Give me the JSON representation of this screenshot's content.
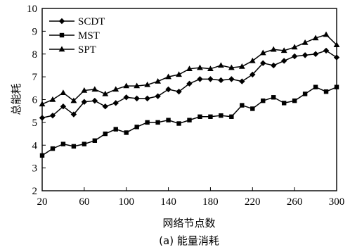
{
  "chart_data": {
    "type": "line",
    "title": "(a) 能量消耗",
    "xlabel": "网络节点数",
    "ylabel": "总能耗",
    "xlim": [
      20,
      300
    ],
    "ylim": [
      2,
      10
    ],
    "xticks": [
      20,
      60,
      100,
      140,
      180,
      220,
      260,
      300
    ],
    "yticks": [
      2,
      3,
      4,
      5,
      6,
      7,
      8,
      9,
      10
    ],
    "grid": false,
    "legend_position": "top-left",
    "x": [
      20,
      30,
      40,
      50,
      60,
      70,
      80,
      90,
      100,
      110,
      120,
      130,
      140,
      150,
      160,
      170,
      180,
      190,
      200,
      210,
      220,
      230,
      240,
      250,
      260,
      270,
      280,
      290,
      300
    ],
    "series": [
      {
        "name": "SCDT",
        "marker": "diamond",
        "values": [
          5.2,
          5.3,
          5.7,
          5.35,
          5.9,
          5.95,
          5.7,
          5.85,
          6.1,
          6.05,
          6.05,
          6.15,
          6.45,
          6.35,
          6.7,
          6.9,
          6.9,
          6.85,
          6.9,
          6.8,
          7.1,
          7.6,
          7.5,
          7.7,
          7.9,
          7.95,
          8.0,
          8.15,
          7.85
        ]
      },
      {
        "name": "MST",
        "marker": "square",
        "values": [
          3.55,
          3.85,
          4.05,
          3.95,
          4.05,
          4.2,
          4.5,
          4.7,
          4.55,
          4.8,
          5.0,
          5.0,
          5.1,
          4.95,
          5.1,
          5.25,
          5.25,
          5.3,
          5.25,
          5.75,
          5.6,
          5.95,
          6.1,
          5.85,
          5.95,
          6.25,
          6.55,
          6.35,
          6.55
        ]
      },
      {
        "name": "SPT",
        "marker": "triangle",
        "values": [
          5.8,
          6.0,
          6.3,
          5.95,
          6.4,
          6.45,
          6.25,
          6.45,
          6.6,
          6.6,
          6.65,
          6.8,
          7.0,
          7.1,
          7.35,
          7.4,
          7.35,
          7.5,
          7.4,
          7.45,
          7.7,
          8.05,
          8.2,
          8.15,
          8.3,
          8.5,
          8.7,
          8.85,
          8.4
        ]
      }
    ]
  }
}
